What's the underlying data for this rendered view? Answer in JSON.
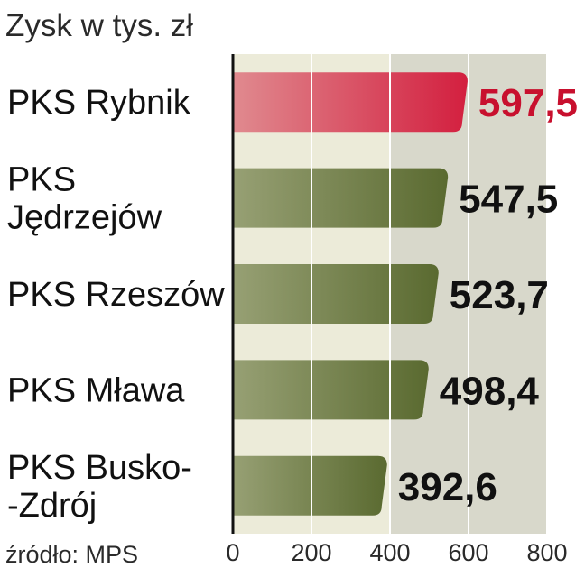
{
  "chart_data": {
    "type": "bar",
    "orientation": "horizontal",
    "title": "Zysk w tys. zł",
    "categories": [
      [
        "PKS Rybnik"
      ],
      [
        "PKS",
        "Jędrzejów"
      ],
      [
        "PKS Rzeszów"
      ],
      [
        "PKS Mława"
      ],
      [
        "PKS Busko-",
        "-Zdrój"
      ]
    ],
    "values": [
      597.5,
      547.5,
      523.7,
      498.4,
      392.6
    ],
    "value_labels": [
      "597,5",
      "547,5",
      "523,7",
      "498,4",
      "392,6"
    ],
    "highlight_index": 0,
    "xlim": [
      0,
      800
    ],
    "xticks": [
      0,
      200,
      400,
      600,
      800
    ],
    "tick_labels": [
      "0",
      "200",
      "400",
      "600",
      "800"
    ],
    "grid": true,
    "source": "źródło: MPS",
    "colors": {
      "highlight_bar": "#d31f3f",
      "highlight_bar_light": "#e08a8f",
      "bar": "#5a6a30",
      "bar_light": "#97a074",
      "highlight_label": "#c8102e",
      "band_light": "#ecebd9",
      "band_dark": "#d8d8cb",
      "grid": "#ffffff"
    }
  }
}
